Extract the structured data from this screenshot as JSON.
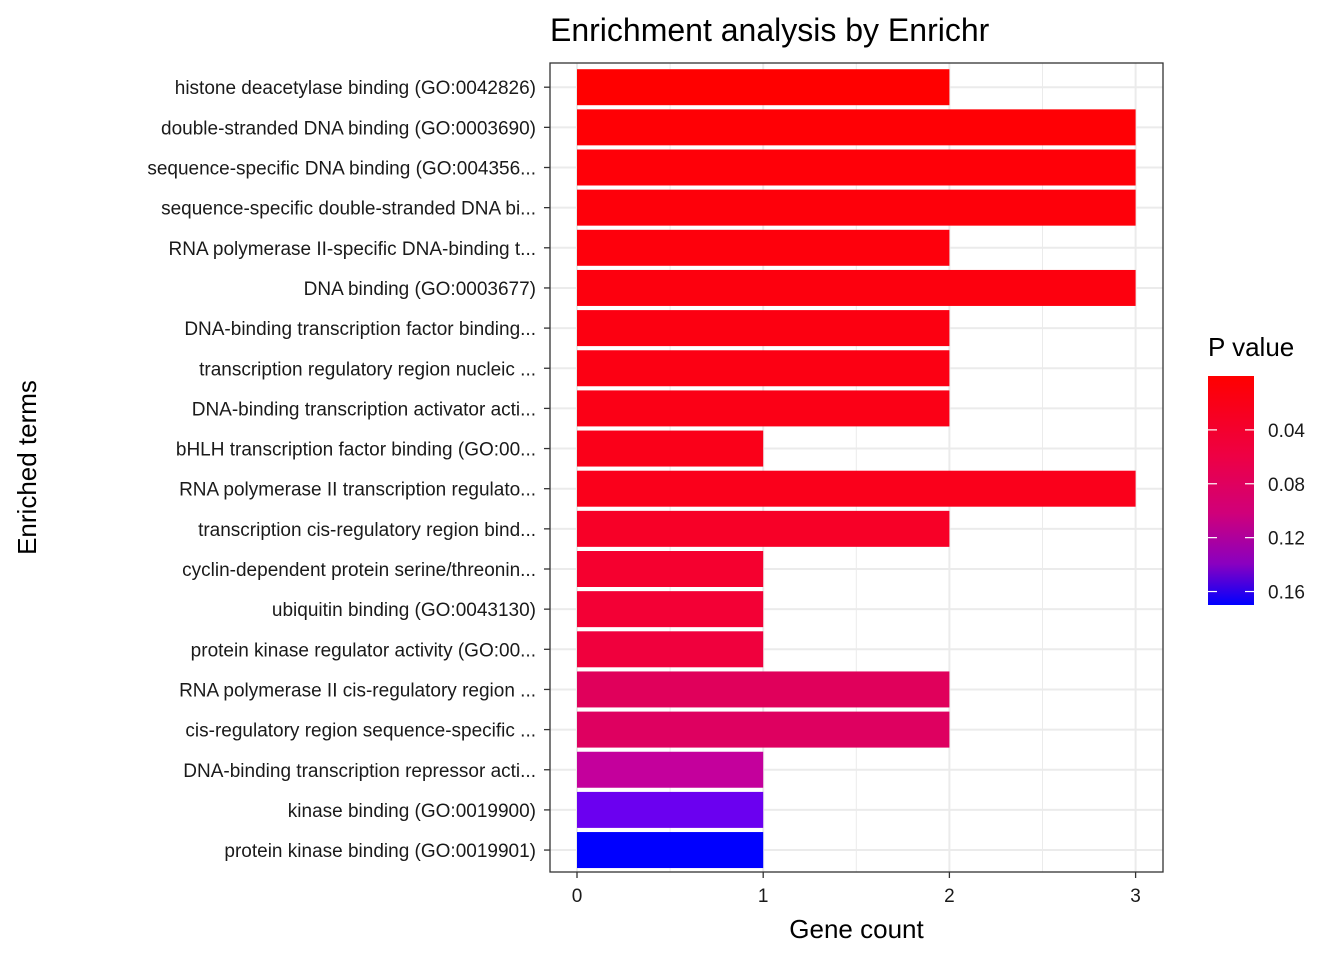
{
  "chart_data": {
    "type": "bar",
    "orientation": "horizontal",
    "title": "Enrichment analysis by Enrichr",
    "xlabel": "Gene count",
    "ylabel": "Enriched terms",
    "xlim": [
      0,
      3
    ],
    "x_ticks": [
      "0",
      "1",
      "2",
      "3"
    ],
    "grid": true,
    "legend": {
      "title": "P value",
      "placement": "right",
      "ticks": [
        "0.04",
        "0.08",
        "0.12",
        "0.16"
      ],
      "tick_values": [
        0.04,
        0.08,
        0.12,
        0.16
      ],
      "range": [
        0.0,
        0.17
      ],
      "low_color": "#ff0000",
      "high_color": "#0000ff"
    },
    "categories": [
      "histone deacetylase binding (GO:0042826)",
      "double-stranded DNA binding (GO:0003690)",
      "sequence-specific DNA binding (GO:004356...",
      "sequence-specific double-stranded DNA bi...",
      "RNA polymerase II-specific DNA-binding t...",
      "DNA binding (GO:0003677)",
      "DNA-binding transcription factor binding...",
      "transcription regulatory region nucleic ...",
      "DNA-binding transcription activator acti...",
      "bHLH transcription factor binding (GO:00...",
      "RNA polymerase II transcription regulato...",
      "transcription cis-regulatory region bind...",
      "cyclin-dependent protein serine/threonin...",
      "ubiquitin binding (GO:0043130)",
      "protein kinase regulator activity (GO:00...",
      "RNA polymerase II cis-regulatory region ...",
      "cis-regulatory region sequence-specific ...",
      "DNA-binding transcription repressor acti...",
      "kinase binding (GO:0019900)",
      "protein kinase binding (GO:0019901)"
    ],
    "values": [
      2,
      3,
      3,
      3,
      2,
      3,
      2,
      2,
      2,
      1,
      3,
      2,
      1,
      1,
      1,
      2,
      2,
      1,
      1,
      1
    ],
    "p_values": [
      0.001,
      0.002,
      0.003,
      0.004,
      0.006,
      0.008,
      0.008,
      0.009,
      0.01,
      0.012,
      0.013,
      0.016,
      0.018,
      0.02,
      0.022,
      0.04,
      0.043,
      0.075,
      0.135,
      0.168
    ],
    "colors": [
      "#ff0000",
      "#ff0005",
      "#ff0008",
      "#fe000a",
      "#fe000c",
      "#fd000e",
      "#fc0011",
      "#fc0013",
      "#fb0016",
      "#fa0019",
      "#fa001b",
      "#f70027",
      "#f5002f",
      "#f30035",
      "#f0003d",
      "#e0005b",
      "#de0060",
      "#c4009c",
      "#6b00f0",
      "#0000ff"
    ]
  }
}
